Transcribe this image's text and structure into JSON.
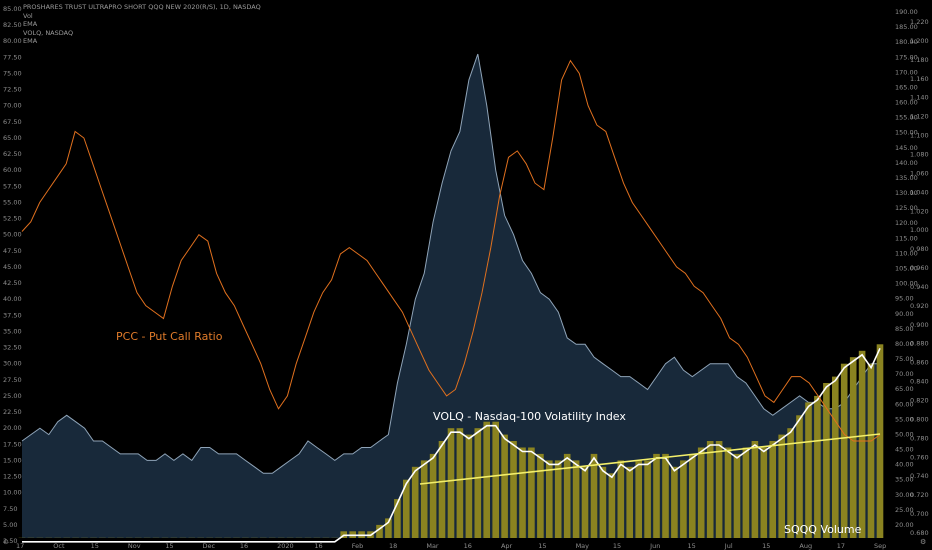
{
  "header": {
    "symbol_line": "PROSHARES TRUST ULTRAPRO SHORT QQQ NEW 2020(R/S), 1D, NASDAQ",
    "line2": "Vol",
    "line3": "EMA",
    "line4": "VOLQ, NASDAQ",
    "line5": "EMA"
  },
  "annotations": {
    "pcc": "PCC - Put Call Ratio",
    "volq": "VOLQ - Nasdaq-100 Volatility Index",
    "sqqq": "SQQQ Volume"
  },
  "colors": {
    "background": "#000000",
    "pcc_line": "#e0701e",
    "volq_line": "#8fa4b8",
    "volq_fill": "#1b2d40",
    "volume_bar": "#8a8320",
    "volume_ema": "#ffffff",
    "trendline": "#f3ef6a",
    "annotation_pcc": "#e07b2a",
    "annotation_white": "#ffffff"
  },
  "chart_data": {
    "type": "line",
    "x_tick_labels": [
      "17",
      "Oct",
      "15",
      "Nov",
      "15",
      "Dec",
      "16",
      "2020",
      "16",
      "Feb",
      "18",
      "Mar",
      "16",
      "Apr",
      "15",
      "May",
      "15",
      "Jun",
      "15",
      "Jul",
      "15",
      "Aug",
      "17",
      "Sep"
    ],
    "left_axis": {
      "ticks": [
        "85.00",
        "82.50",
        "80.00",
        "77.50",
        "75.00",
        "72.50",
        "70.00",
        "67.50",
        "65.00",
        "62.50",
        "60.00",
        "57.50",
        "55.00",
        "52.50",
        "50.00",
        "47.50",
        "45.00",
        "42.50",
        "40.00",
        "37.50",
        "35.00",
        "32.50",
        "30.00",
        "27.50",
        "25.00",
        "22.50",
        "20.00",
        "17.50",
        "15.00",
        "12.50",
        "10.00",
        "7.50",
        "5.00",
        "2.50"
      ],
      "range": [
        2.5,
        85
      ]
    },
    "right_axis": {
      "ticks": [
        "1.220",
        "1.200",
        "1.180",
        "1.160",
        "1.140",
        "1.120",
        "1.100",
        "1.080",
        "1.060",
        "1.040",
        "1.020",
        "1.000",
        "0.980",
        "0.960",
        "0.940",
        "0.920",
        "0.900",
        "0.880",
        "0.860",
        "0.840",
        "0.820",
        "0.800",
        "0.780",
        "0.760",
        "0.740",
        "0.720",
        "0.700",
        "0.680"
      ],
      "ticks_price": [
        "190.00",
        "185.00",
        "180.00",
        "175.00",
        "170.00",
        "165.00",
        "160.00",
        "155.00",
        "150.00",
        "145.00",
        "140.00",
        "135.00",
        "130.00",
        "125.00",
        "120.00",
        "115.00",
        "110.00",
        "105.00",
        "100.00",
        "95.00",
        "90.00",
        "85.00",
        "80.00",
        "75.00",
        "70.00",
        "65.00",
        "60.00",
        "55.00",
        "50.00",
        "45.00",
        "40.00",
        "35.00",
        "30.00",
        "25.00",
        "20.00"
      ]
    },
    "series": [
      {
        "name": "PCC - Put Call Ratio",
        "values": [
          50.5,
          52,
          55,
          57,
          59,
          61,
          66,
          65,
          61,
          57,
          53,
          49,
          45,
          41,
          39,
          38,
          37,
          42,
          46,
          48,
          50,
          49,
          44,
          41,
          39,
          36,
          33,
          30,
          26,
          23,
          25,
          30,
          34,
          38,
          41,
          43,
          47,
          48,
          47,
          46,
          44,
          42,
          40,
          38,
          35,
          32,
          29,
          27,
          25,
          26,
          30,
          35,
          41,
          48,
          56,
          62,
          63,
          61,
          58,
          57,
          65,
          74,
          77,
          75,
          70,
          67,
          66,
          62,
          58,
          55,
          53,
          51,
          49,
          47,
          45,
          44,
          42,
          41,
          39,
          37,
          34,
          33,
          31,
          28,
          25,
          24,
          26,
          28,
          28,
          27,
          25,
          23,
          21,
          19,
          18,
          18,
          18,
          19
        ]
      },
      {
        "name": "VOLQ - Nasdaq-100 Volatility Index",
        "values": [
          18,
          19,
          20,
          19,
          21,
          22,
          21,
          20,
          18,
          18,
          17,
          16,
          16,
          16,
          15,
          15,
          16,
          15,
          16,
          15,
          17,
          17,
          16,
          16,
          16,
          15,
          14,
          13,
          13,
          14,
          15,
          16,
          18,
          17,
          16,
          15,
          16,
          16,
          17,
          17,
          18,
          19,
          27,
          33,
          40,
          44,
          52,
          58,
          63,
          66,
          74,
          78,
          70,
          60,
          53,
          50,
          46,
          44,
          41,
          40,
          38,
          34,
          33,
          33,
          31,
          30,
          29,
          28,
          28,
          27,
          26,
          28,
          30,
          31,
          29,
          28,
          29,
          30,
          30,
          30,
          28,
          27,
          25,
          23,
          22,
          23,
          24,
          25,
          24,
          24,
          23,
          23,
          24,
          26,
          28,
          30,
          30
        ]
      },
      {
        "name": "SQQQ Volume",
        "values": [
          3,
          3,
          3,
          3,
          3,
          3,
          3,
          3,
          3,
          3,
          3,
          3,
          3,
          3,
          3,
          3,
          3,
          3,
          3,
          3,
          3,
          3,
          3,
          3,
          3,
          3,
          3,
          3,
          3,
          3,
          3,
          3,
          3,
          3,
          3,
          3,
          4,
          4,
          4,
          4,
          5,
          6,
          9,
          12,
          14,
          15,
          16,
          18,
          20,
          20,
          19,
          20,
          21,
          21,
          19,
          18,
          17,
          17,
          16,
          15,
          15,
          16,
          15,
          14,
          16,
          14,
          13,
          15,
          14,
          15,
          15,
          16,
          16,
          14,
          15,
          16,
          17,
          18,
          18,
          17,
          16,
          17,
          18,
          17,
          18,
          19,
          20,
          22,
          24,
          25,
          27,
          28,
          30,
          31,
          32,
          30,
          33
        ]
      }
    ],
    "title": "PROSHARES TRUST ULTRAPRO SHORT QQQ NEW 2020(R/S), 1D, NASDAQ",
    "grid": false
  }
}
